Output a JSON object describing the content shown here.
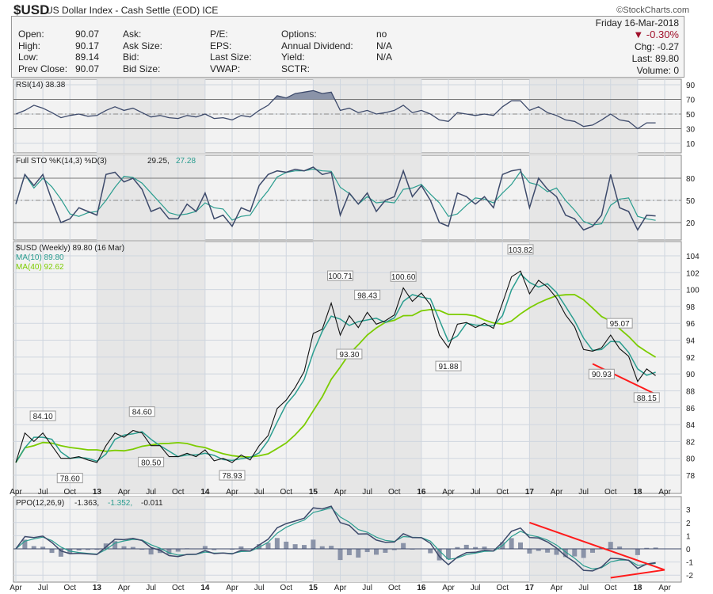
{
  "header": {
    "symbol": "$USD",
    "name": "US Dollar Index - Cash Settle (EOD) ICE",
    "brand": "©StockCharts.com",
    "date": "Friday 16-Mar-2018",
    "pct_change": "-0.30%",
    "chg": "Chg: -0.27",
    "last": "Last: 89.80",
    "volume": "Volume: 0",
    "fields": [
      [
        "Open:",
        "90.07",
        "Ask:",
        "P/E:",
        "Options:",
        "no"
      ],
      [
        "High:",
        "90.17",
        "Ask Size:",
        "EPS:",
        "Annual Dividend:",
        "N/A"
      ],
      [
        "Low:",
        "89.14",
        "Bid:",
        "Last Size:",
        "Yield:",
        "N/A"
      ],
      [
        "Prev Close:",
        "90.07",
        "Bid Size:",
        "VWAP:",
        "SCTR:",
        ""
      ]
    ],
    "down_color": "#a0102a"
  },
  "chart_data": {
    "type": "line",
    "start": "2012-04",
    "frequency": "monthly",
    "x_ticks": [
      "Apr",
      "Jul",
      "Oct",
      "13",
      "Apr",
      "Jul",
      "Oct",
      "14",
      "Apr",
      "Jul",
      "Oct",
      "15",
      "Apr",
      "Jul",
      "Oct",
      "16",
      "Apr",
      "Jul",
      "Oct",
      "17",
      "Apr",
      "Jul",
      "Oct",
      "18",
      "Apr"
    ],
    "price": {
      "legend": "$USD (Weekly) 89.80 (16 Mar)",
      "ma10_legend": "MA(10) 89.80",
      "ma40_legend": "MA(40) 92.62",
      "ylim": [
        77,
        105
      ],
      "yticks": [
        78,
        80,
        82,
        84,
        86,
        88,
        90,
        92,
        94,
        96,
        98,
        100,
        102,
        104
      ],
      "close": [
        79.5,
        83,
        82,
        83,
        81.5,
        80,
        80,
        80.2,
        79.8,
        79.5,
        81.5,
        83,
        82.5,
        83.3,
        83,
        81.5,
        81.5,
        80.2,
        80.2,
        80.6,
        80.2,
        81,
        79.7,
        80,
        79.5,
        80.4,
        79.8,
        81.5,
        82.7,
        85.9,
        86.9,
        88.4,
        90.3,
        94.8,
        95.3,
        98.4,
        94.6,
        96.9,
        95.5,
        97.3,
        95.9,
        96.3,
        97.0,
        100.2,
        98.6,
        99.6,
        98.2,
        94.6,
        93.1,
        95.9,
        96.1,
        95.5,
        96.0,
        95.4,
        98.4,
        101.5,
        102.2,
        99.5,
        101.1,
        100.3,
        99.0,
        97.0,
        95.6,
        92.9,
        92.7,
        93.1,
        94.6,
        93.0,
        92.1,
        89.1,
        90.6,
        89.8
      ],
      "annotations": [
        {
          "i": 3,
          "v": 84.1,
          "label": "84.10",
          "pos": "above"
        },
        {
          "i": 6,
          "v": 78.6,
          "label": "78.60",
          "pos": "below"
        },
        {
          "i": 14,
          "v": 84.6,
          "label": "84.60",
          "pos": "above"
        },
        {
          "i": 15,
          "v": 80.5,
          "label": "80.50",
          "pos": "below"
        },
        {
          "i": 24,
          "v": 78.93,
          "label": "78.93",
          "pos": "below"
        },
        {
          "i": 36,
          "v": 100.71,
          "label": "100.71",
          "pos": "above"
        },
        {
          "i": 37,
          "v": 93.3,
          "label": "93.30",
          "pos": "below"
        },
        {
          "i": 39,
          "v": 98.43,
          "label": "98.43",
          "pos": "above"
        },
        {
          "i": 43,
          "v": 100.6,
          "label": "100.60",
          "pos": "above"
        },
        {
          "i": 48,
          "v": 91.88,
          "label": "91.88",
          "pos": "below"
        },
        {
          "i": 56,
          "v": 103.82,
          "label": "103.82",
          "pos": "above"
        },
        {
          "i": 65,
          "v": 90.93,
          "label": "90.93",
          "pos": "below"
        },
        {
          "i": 67,
          "v": 95.07,
          "label": "95.07",
          "pos": "above"
        },
        {
          "i": 70,
          "v": 88.15,
          "label": "88.15",
          "pos": "below"
        }
      ],
      "trendline": [
        {
          "i": 64,
          "v": 91.2
        },
        {
          "i": 71,
          "v": 87.6
        }
      ]
    },
    "rsi": {
      "legend": "RSI(14) 38.38",
      "yticks": [
        10,
        30,
        50,
        70,
        90
      ],
      "values": [
        50,
        55,
        62,
        58,
        52,
        45,
        48,
        50,
        47,
        48,
        55,
        60,
        55,
        58,
        52,
        46,
        48,
        45,
        44,
        48,
        46,
        50,
        44,
        45,
        42,
        48,
        46,
        55,
        62,
        75,
        72,
        78,
        80,
        82,
        78,
        80,
        55,
        58,
        52,
        55,
        50,
        52,
        55,
        62,
        52,
        55,
        50,
        42,
        40,
        52,
        50,
        48,
        50,
        48,
        60,
        68,
        68,
        55,
        60,
        52,
        48,
        42,
        40,
        33,
        35,
        42,
        50,
        42,
        40,
        30,
        38,
        38
      ]
    },
    "sto": {
      "legend": "Full STO %K(14,3) %D(3)",
      "k_value": "29.25,",
      "d_value": "27.28",
      "yticks": [
        20,
        50,
        80
      ],
      "k": [
        45,
        85,
        70,
        85,
        50,
        20,
        25,
        40,
        35,
        30,
        85,
        88,
        75,
        80,
        65,
        35,
        40,
        25,
        25,
        45,
        35,
        60,
        25,
        30,
        15,
        40,
        35,
        70,
        85,
        90,
        88,
        92,
        90,
        95,
        85,
        88,
        30,
        60,
        45,
        60,
        35,
        50,
        55,
        90,
        55,
        70,
        50,
        20,
        15,
        60,
        55,
        45,
        55,
        40,
        85,
        90,
        92,
        40,
        80,
        65,
        55,
        30,
        25,
        10,
        15,
        30,
        85,
        40,
        35,
        10,
        30,
        29
      ]
    },
    "ppo": {
      "legend": "PPO(12,26,9)",
      "ppo_value": "-1.363,",
      "signal_value": "-1.352,",
      "hist_value": "-0.011",
      "ylim": [
        -2.6,
        3.9
      ],
      "yticks": [
        -2,
        -1,
        0,
        1,
        2,
        3
      ],
      "trendlines": [
        [
          {
            "i": 57,
            "v": 2.0
          },
          {
            "i": 72,
            "v": -1.6
          }
        ],
        [
          {
            "i": 66,
            "v": -2.2
          },
          {
            "i": 72,
            "v": -1.6
          }
        ]
      ]
    },
    "colors": {
      "price": "#111111",
      "ma10": "#2a9d8f",
      "ma40": "#7ccc00",
      "line": "#3d4a6b",
      "signal": "#2a9d8f",
      "trend": "#ff1a1a",
      "fill": "#8a93a8"
    }
  }
}
